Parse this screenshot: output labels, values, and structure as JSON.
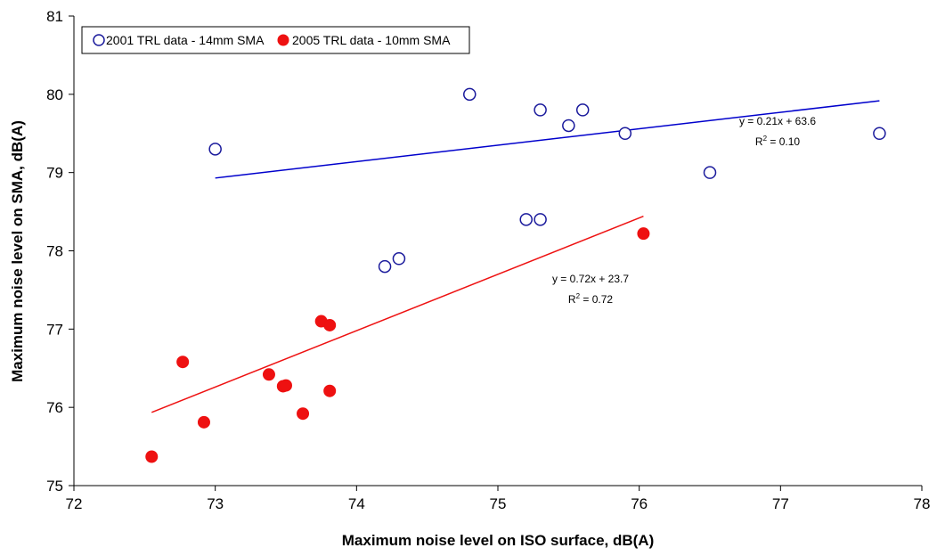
{
  "chart_data": {
    "type": "scatter",
    "xlabel": "Maximum noise level on ISO surface, dB(A)",
    "ylabel": "Maximum noise level on SMA, dB(A)",
    "xlim": [
      72,
      78
    ],
    "ylim": [
      75,
      81
    ],
    "x_ticks": [
      "72",
      "73",
      "74",
      "75",
      "76",
      "77",
      "78"
    ],
    "y_ticks": [
      "75",
      "76",
      "77",
      "78",
      "79",
      "80",
      "81"
    ],
    "grid": false,
    "legend_position": "top-left",
    "series": [
      {
        "name": "2001 TRL data - 14mm SMA",
        "marker": "open-circle",
        "color": "#1a1a9c",
        "points": [
          [
            73.0,
            79.3
          ],
          [
            74.8,
            80.0
          ],
          [
            75.3,
            79.8
          ],
          [
            75.5,
            79.6
          ],
          [
            75.6,
            79.8
          ],
          [
            75.9,
            79.5
          ],
          [
            77.7,
            79.5
          ],
          [
            76.5,
            79.0
          ],
          [
            75.2,
            78.4
          ],
          [
            75.3,
            78.4
          ],
          [
            74.2,
            77.8
          ],
          [
            74.3,
            77.9
          ]
        ],
        "trendline": {
          "slope": 0.21,
          "intercept": 63.6,
          "x_start": 73.0,
          "x_end": 77.7,
          "color": "#0000cc",
          "equation": "y = 0.21x + 63.6",
          "r2_label": "R",
          "r2_value": " = 0.10"
        }
      },
      {
        "name": "2005 TRL data - 10mm SMA",
        "marker": "filled-circle",
        "color": "#ee1111",
        "points": [
          [
            72.55,
            75.37
          ],
          [
            72.77,
            76.58
          ],
          [
            72.92,
            75.81
          ],
          [
            73.38,
            76.42
          ],
          [
            73.48,
            76.27
          ],
          [
            73.5,
            76.28
          ],
          [
            73.62,
            75.92
          ],
          [
            73.75,
            77.1
          ],
          [
            73.81,
            77.05
          ],
          [
            73.81,
            76.21
          ],
          [
            76.03,
            78.22
          ]
        ],
        "trendline": {
          "slope": 0.72,
          "intercept": 23.7,
          "x_start": 72.55,
          "x_end": 76.03,
          "color": "#ee1111",
          "equation": "y = 0.72x + 23.7",
          "r2_label": "R",
          "r2_value": " = 0.72"
        }
      }
    ]
  }
}
